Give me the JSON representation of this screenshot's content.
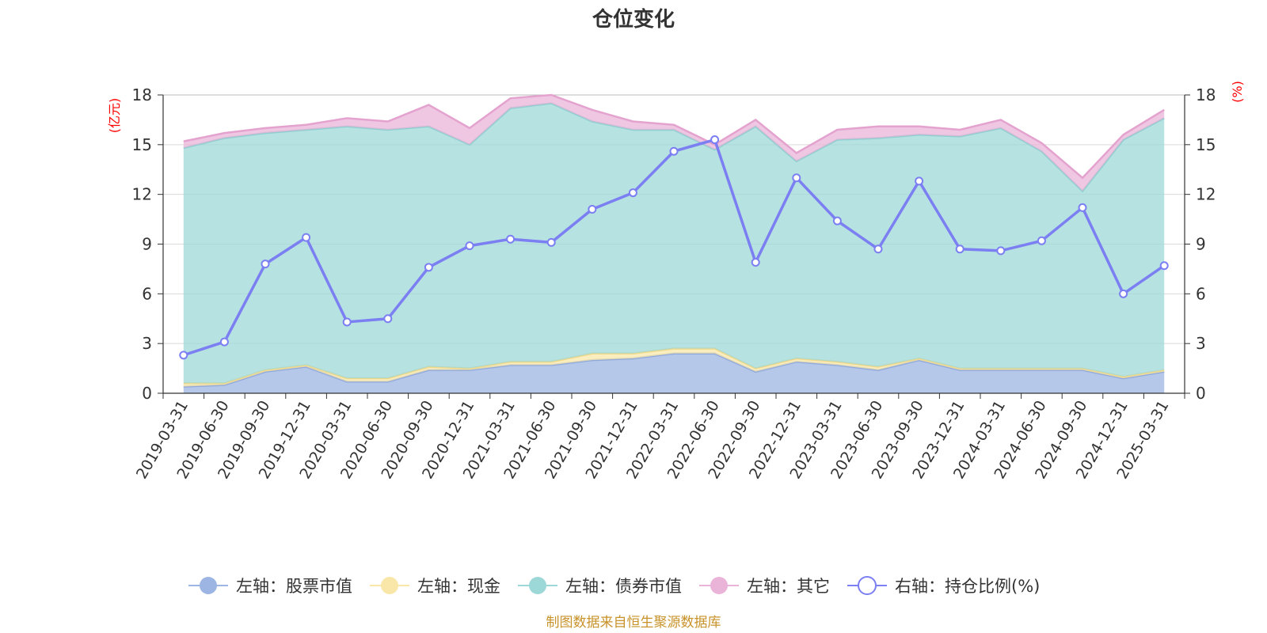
{
  "chart_data": {
    "type": "area",
    "title": "仓位变化",
    "left_axis_label": "(亿元)",
    "right_axis_label": "(%)",
    "ylim_left": [
      0,
      18
    ],
    "ylim_right": [
      0,
      18
    ],
    "yticks": [
      "0",
      "3",
      "6",
      "9",
      "12",
      "15",
      "18"
    ],
    "categories": [
      "2019-03-31",
      "2019-06-30",
      "2019-09-30",
      "2019-12-31",
      "2020-03-31",
      "2020-06-30",
      "2020-09-30",
      "2020-12-31",
      "2021-03-31",
      "2021-06-30",
      "2021-09-30",
      "2021-12-31",
      "2022-03-31",
      "2022-06-30",
      "2022-09-30",
      "2022-12-31",
      "2023-03-31",
      "2023-06-30",
      "2023-09-30",
      "2023-12-31",
      "2024-03-31",
      "2024-06-30",
      "2024-09-30",
      "2024-12-31",
      "2025-03-31"
    ],
    "series": [
      {
        "name": "左轴：股票市值",
        "axis": "left",
        "kind": "stacked-area",
        "color": "#9db5e2",
        "values": [
          0.4,
          0.5,
          1.3,
          1.6,
          0.7,
          0.7,
          1.4,
          1.4,
          1.7,
          1.7,
          2.0,
          2.1,
          2.4,
          2.4,
          1.3,
          1.9,
          1.7,
          1.4,
          2.0,
          1.4,
          1.4,
          1.4,
          1.4,
          0.9,
          1.3
        ]
      },
      {
        "name": "左轴：现金",
        "axis": "left",
        "kind": "stacked-area",
        "color": "#f8e7a8",
        "values": [
          0.2,
          0.1,
          0.1,
          0.1,
          0.2,
          0.2,
          0.2,
          0.1,
          0.2,
          0.2,
          0.4,
          0.3,
          0.3,
          0.3,
          0.2,
          0.2,
          0.2,
          0.2,
          0.1,
          0.1,
          0.1,
          0.1,
          0.1,
          0.1,
          0.1
        ]
      },
      {
        "name": "左轴：债券市值",
        "axis": "left",
        "kind": "stacked-area",
        "color": "#9dd8d8",
        "values": [
          14.2,
          14.8,
          14.3,
          14.2,
          15.2,
          15.0,
          14.5,
          13.5,
          15.3,
          15.6,
          14.0,
          13.5,
          13.2,
          12.0,
          14.6,
          11.9,
          13.4,
          13.8,
          13.5,
          14.0,
          14.5,
          13.1,
          10.7,
          14.3,
          15.2
        ]
      },
      {
        "name": "左轴：其它",
        "axis": "left",
        "kind": "stacked-area",
        "color": "#eab4d8",
        "values": [
          0.4,
          0.3,
          0.3,
          0.3,
          0.5,
          0.5,
          1.3,
          1.0,
          0.6,
          0.5,
          0.7,
          0.5,
          0.3,
          0.3,
          0.4,
          0.5,
          0.6,
          0.7,
          0.5,
          0.4,
          0.5,
          0.5,
          0.8,
          0.3,
          0.5
        ]
      },
      {
        "name": "右轴：持仓比例(%)",
        "axis": "right",
        "kind": "line",
        "color": "#7b7ff2",
        "values": [
          2.3,
          3.1,
          7.8,
          9.4,
          4.3,
          4.5,
          7.6,
          8.9,
          9.3,
          9.1,
          11.1,
          12.1,
          14.6,
          15.3,
          7.9,
          13.0,
          10.4,
          8.7,
          12.8,
          8.7,
          8.6,
          9.2,
          11.2,
          6.0,
          7.7
        ]
      }
    ],
    "grid": true,
    "legend_position": "bottom"
  },
  "source_note": "制图数据来自恒生聚源数据库"
}
